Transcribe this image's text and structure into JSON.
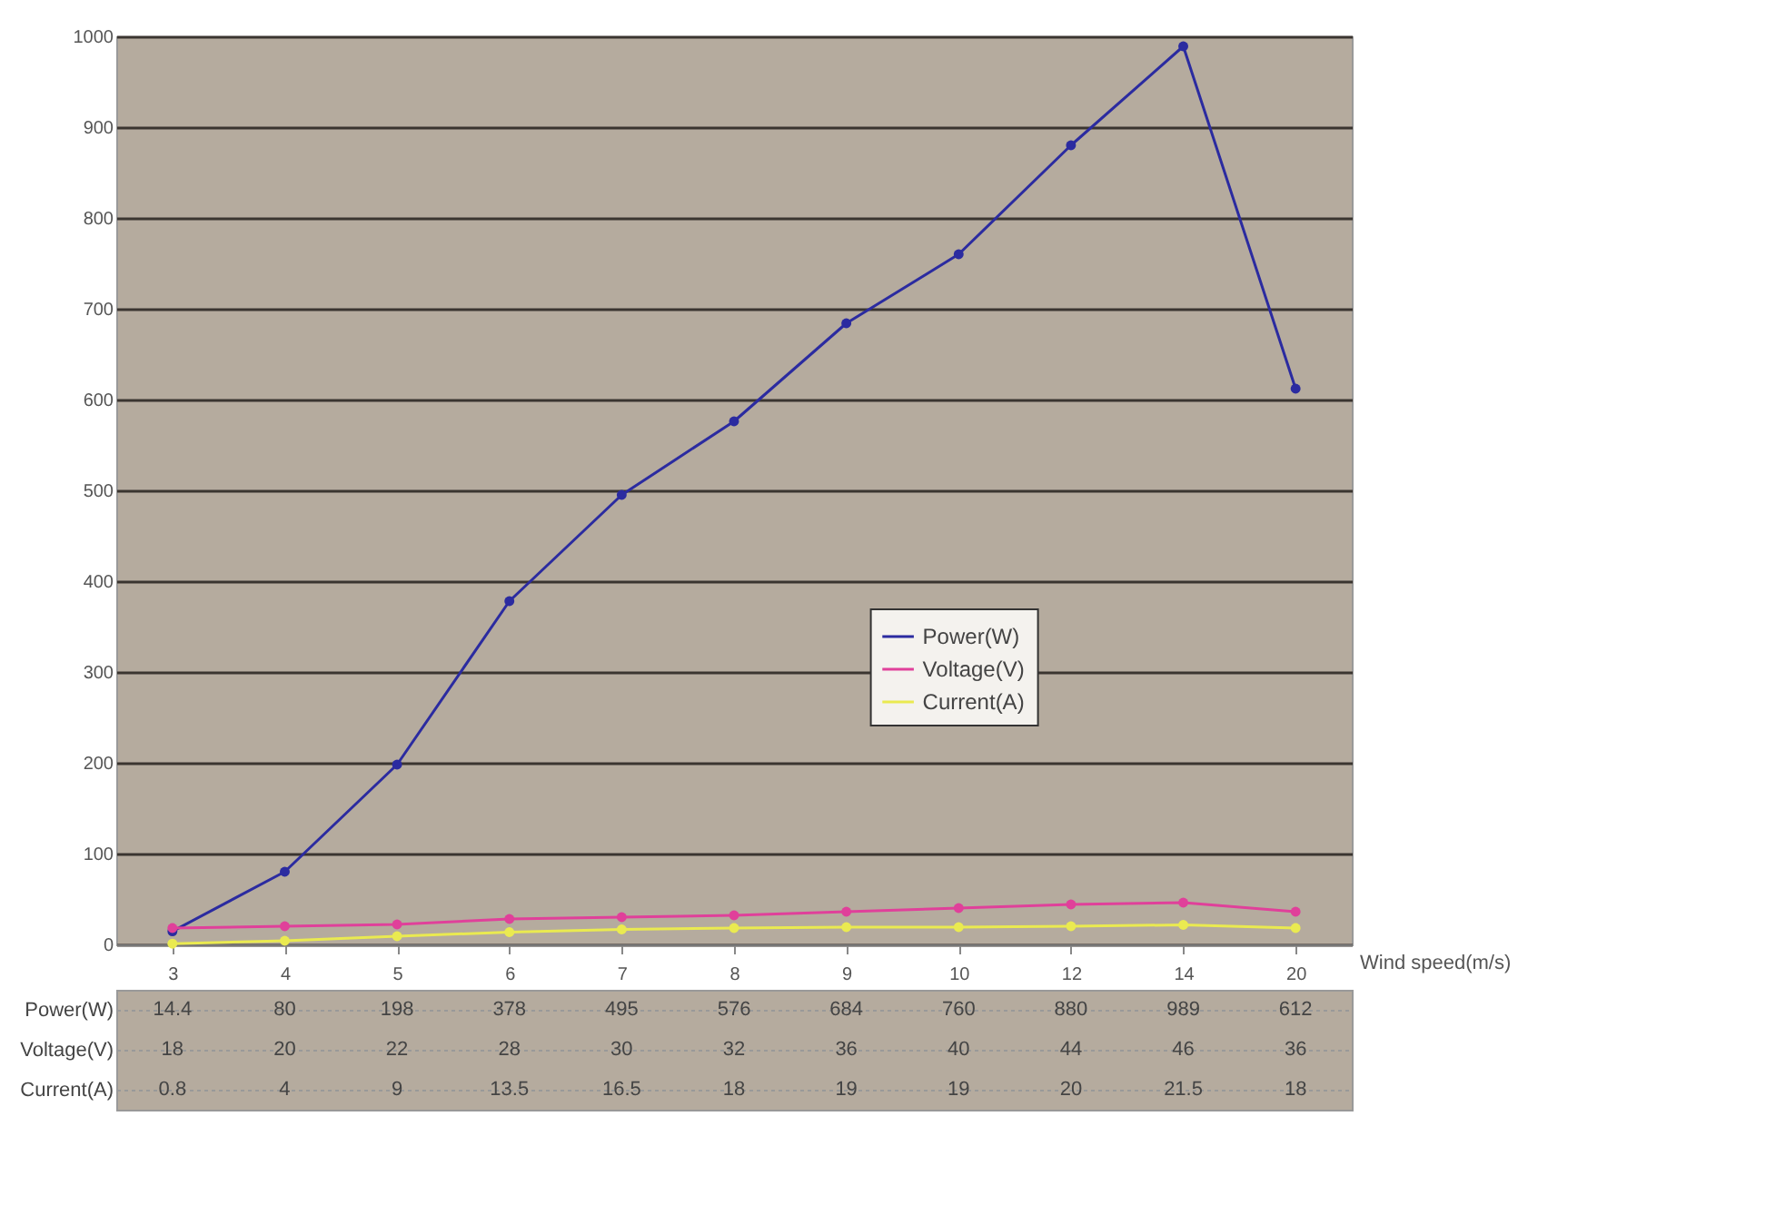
{
  "chart_data": {
    "type": "line",
    "xlabel": "Wind speed(m/s)",
    "categories": [
      "3",
      "4",
      "5",
      "6",
      "7",
      "8",
      "9",
      "10",
      "12",
      "14",
      "20"
    ],
    "series": [
      {
        "name": "Power(W)",
        "color": "#2b2ba0",
        "values": [
          14.4,
          80,
          198,
          378,
          495,
          576,
          684,
          760,
          880,
          989,
          612
        ]
      },
      {
        "name": "Voltage(V)",
        "color": "#e0409a",
        "values": [
          18,
          20,
          22,
          28,
          30,
          32,
          36,
          40,
          44,
          46,
          36
        ]
      },
      {
        "name": "Current(A)",
        "color": "#eaea50",
        "values": [
          0.8,
          4,
          9,
          13.5,
          16.5,
          18,
          19,
          19,
          20,
          21.5,
          18
        ]
      }
    ],
    "ylim": [
      0,
      1000
    ],
    "yticks": [
      0,
      100,
      200,
      300,
      400,
      500,
      600,
      700,
      800,
      900,
      1000
    ],
    "grid": "y",
    "legend": "right",
    "marker": "circle",
    "data_labels": true
  }
}
